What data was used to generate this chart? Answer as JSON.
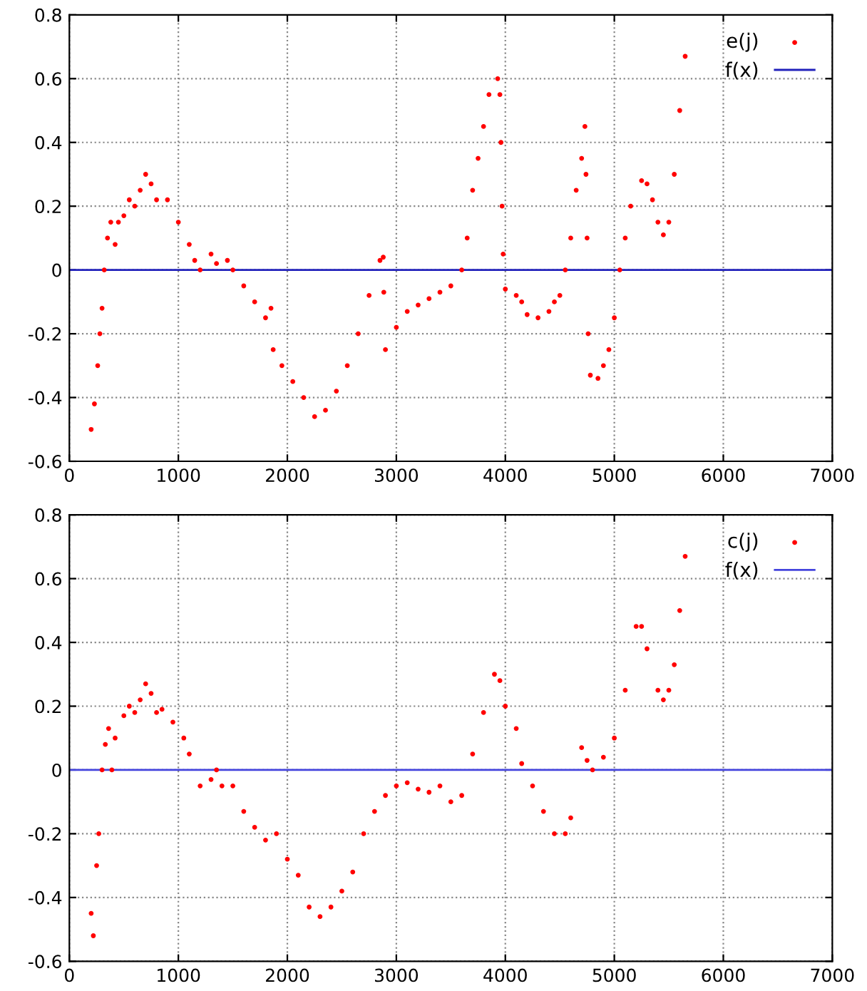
{
  "chart_data": [
    {
      "type": "scatter",
      "xlim": [
        0,
        7000
      ],
      "ylim": [
        -0.6,
        0.8
      ],
      "xticks": [
        0,
        1000,
        2000,
        3000,
        4000,
        5000,
        6000,
        7000
      ],
      "yticks": [
        -0.6,
        -0.4,
        -0.2,
        0,
        0.2,
        0.4,
        0.6,
        0.8
      ],
      "grid": true,
      "legend": "top right",
      "series": [
        {
          "name": "e(j)",
          "marker": "circle",
          "color": "#ff0000",
          "x": [
            200,
            230,
            260,
            280,
            300,
            320,
            350,
            380,
            420,
            450,
            500,
            550,
            600,
            650,
            700,
            750,
            800,
            900,
            1000,
            1100,
            1150,
            1200,
            1300,
            1350,
            1450,
            1500,
            1600,
            1700,
            1800,
            1850,
            1870,
            1950,
            2050,
            2150,
            2250,
            2350,
            2450,
            2550,
            2650,
            2750,
            2850,
            2880,
            2885,
            2900,
            3000,
            3100,
            3200,
            3300,
            3400,
            3500,
            3600,
            3650,
            3700,
            3750,
            3800,
            3850,
            3930,
            3950,
            3960,
            3970,
            3980,
            4000,
            4100,
            4150,
            4200,
            4300,
            4400,
            4450,
            4500,
            4550,
            4600,
            4650,
            4700,
            4730,
            4740,
            4750,
            4760,
            4780,
            4850,
            4900,
            4950,
            5000,
            5050,
            5100,
            5150,
            5250,
            5300,
            5350,
            5400,
            5450,
            5500,
            5550,
            5600,
            5650
          ],
          "values": [
            -0.5,
            -0.42,
            -0.3,
            -0.2,
            -0.12,
            0,
            0.1,
            0.15,
            0.08,
            0.15,
            0.17,
            0.22,
            0.2,
            0.25,
            0.3,
            0.27,
            0.22,
            0.22,
            0.15,
            0.08,
            0.03,
            0,
            0.05,
            0.02,
            0.03,
            0,
            -0.05,
            -0.1,
            -0.15,
            -0.12,
            -0.25,
            -0.3,
            -0.35,
            -0.4,
            -0.46,
            -0.44,
            -0.38,
            -0.3,
            -0.2,
            -0.08,
            0.03,
            0.04,
            -0.07,
            -0.25,
            -0.18,
            -0.13,
            -0.11,
            -0.09,
            -0.07,
            -0.05,
            0,
            0.1,
            0.25,
            0.35,
            0.45,
            0.55,
            0.6,
            0.55,
            0.4,
            0.2,
            0.05,
            -0.06,
            -0.08,
            -0.1,
            -0.14,
            -0.15,
            -0.13,
            -0.1,
            -0.08,
            0,
            0.1,
            0.25,
            0.35,
            0.45,
            0.3,
            0.1,
            -0.2,
            -0.33,
            -0.34,
            -0.3,
            -0.25,
            -0.15,
            0,
            0.1,
            0.2,
            0.28,
            0.27,
            0.22,
            0.15,
            0.11,
            0.15,
            0.3,
            0.5,
            0.67
          ]
        },
        {
          "name": "f(x)",
          "type": "line",
          "marker": "none",
          "color": "#2222bb",
          "x": [
            0,
            7000
          ],
          "values": [
            0,
            0
          ]
        }
      ]
    },
    {
      "type": "scatter",
      "xlim": [
        0,
        7000
      ],
      "ylim": [
        -0.6,
        0.8
      ],
      "xticks": [
        0,
        1000,
        2000,
        3000,
        4000,
        5000,
        6000,
        7000
      ],
      "yticks": [
        -0.6,
        -0.4,
        -0.2,
        0,
        0.2,
        0.4,
        0.6,
        0.8
      ],
      "grid": true,
      "legend": "top right",
      "series": [
        {
          "name": "c(j)",
          "marker": "circle",
          "color": "#ff0000",
          "x": [
            200,
            220,
            250,
            270,
            300,
            330,
            360,
            390,
            420,
            500,
            550,
            600,
            650,
            700,
            750,
            800,
            850,
            950,
            1050,
            1100,
            1200,
            1300,
            1350,
            1400,
            1500,
            1600,
            1700,
            1800,
            1900,
            2000,
            2100,
            2200,
            2300,
            2400,
            2500,
            2600,
            2700,
            2800,
            2900,
            3000,
            3100,
            3200,
            3300,
            3400,
            3500,
            3600,
            3700,
            3800,
            3900,
            3950,
            4000,
            4100,
            4150,
            4250,
            4350,
            4450,
            4550,
            4600,
            4700,
            4750,
            4800,
            4900,
            5000,
            5100,
            5200,
            5250,
            5300,
            5400,
            5450,
            5500,
            5550,
            5600,
            5650
          ],
          "values": [
            -0.45,
            -0.52,
            -0.3,
            -0.2,
            0,
            0.08,
            0.13,
            0,
            0.1,
            0.17,
            0.2,
            0.18,
            0.22,
            0.27,
            0.24,
            0.18,
            0.19,
            0.15,
            0.1,
            0.05,
            -0.05,
            -0.03,
            0,
            -0.05,
            -0.05,
            -0.13,
            -0.18,
            -0.22,
            -0.2,
            -0.28,
            -0.33,
            -0.43,
            -0.46,
            -0.43,
            -0.38,
            -0.32,
            -0.2,
            -0.13,
            -0.08,
            -0.05,
            -0.04,
            -0.06,
            -0.07,
            -0.05,
            -0.1,
            -0.08,
            0.05,
            0.18,
            0.3,
            0.28,
            0.2,
            0.13,
            0.02,
            -0.05,
            -0.13,
            -0.2,
            -0.2,
            -0.15,
            0.07,
            0.03,
            0,
            0.04,
            0.1,
            0.25,
            0.45,
            0.45,
            0.38,
            0.25,
            0.22,
            0.25,
            0.33,
            0.5,
            0.67
          ]
        },
        {
          "name": "f(x)",
          "type": "line",
          "marker": "none",
          "color": "#4444dd",
          "x": [
            0,
            7000
          ],
          "values": [
            0,
            0
          ]
        }
      ]
    }
  ]
}
